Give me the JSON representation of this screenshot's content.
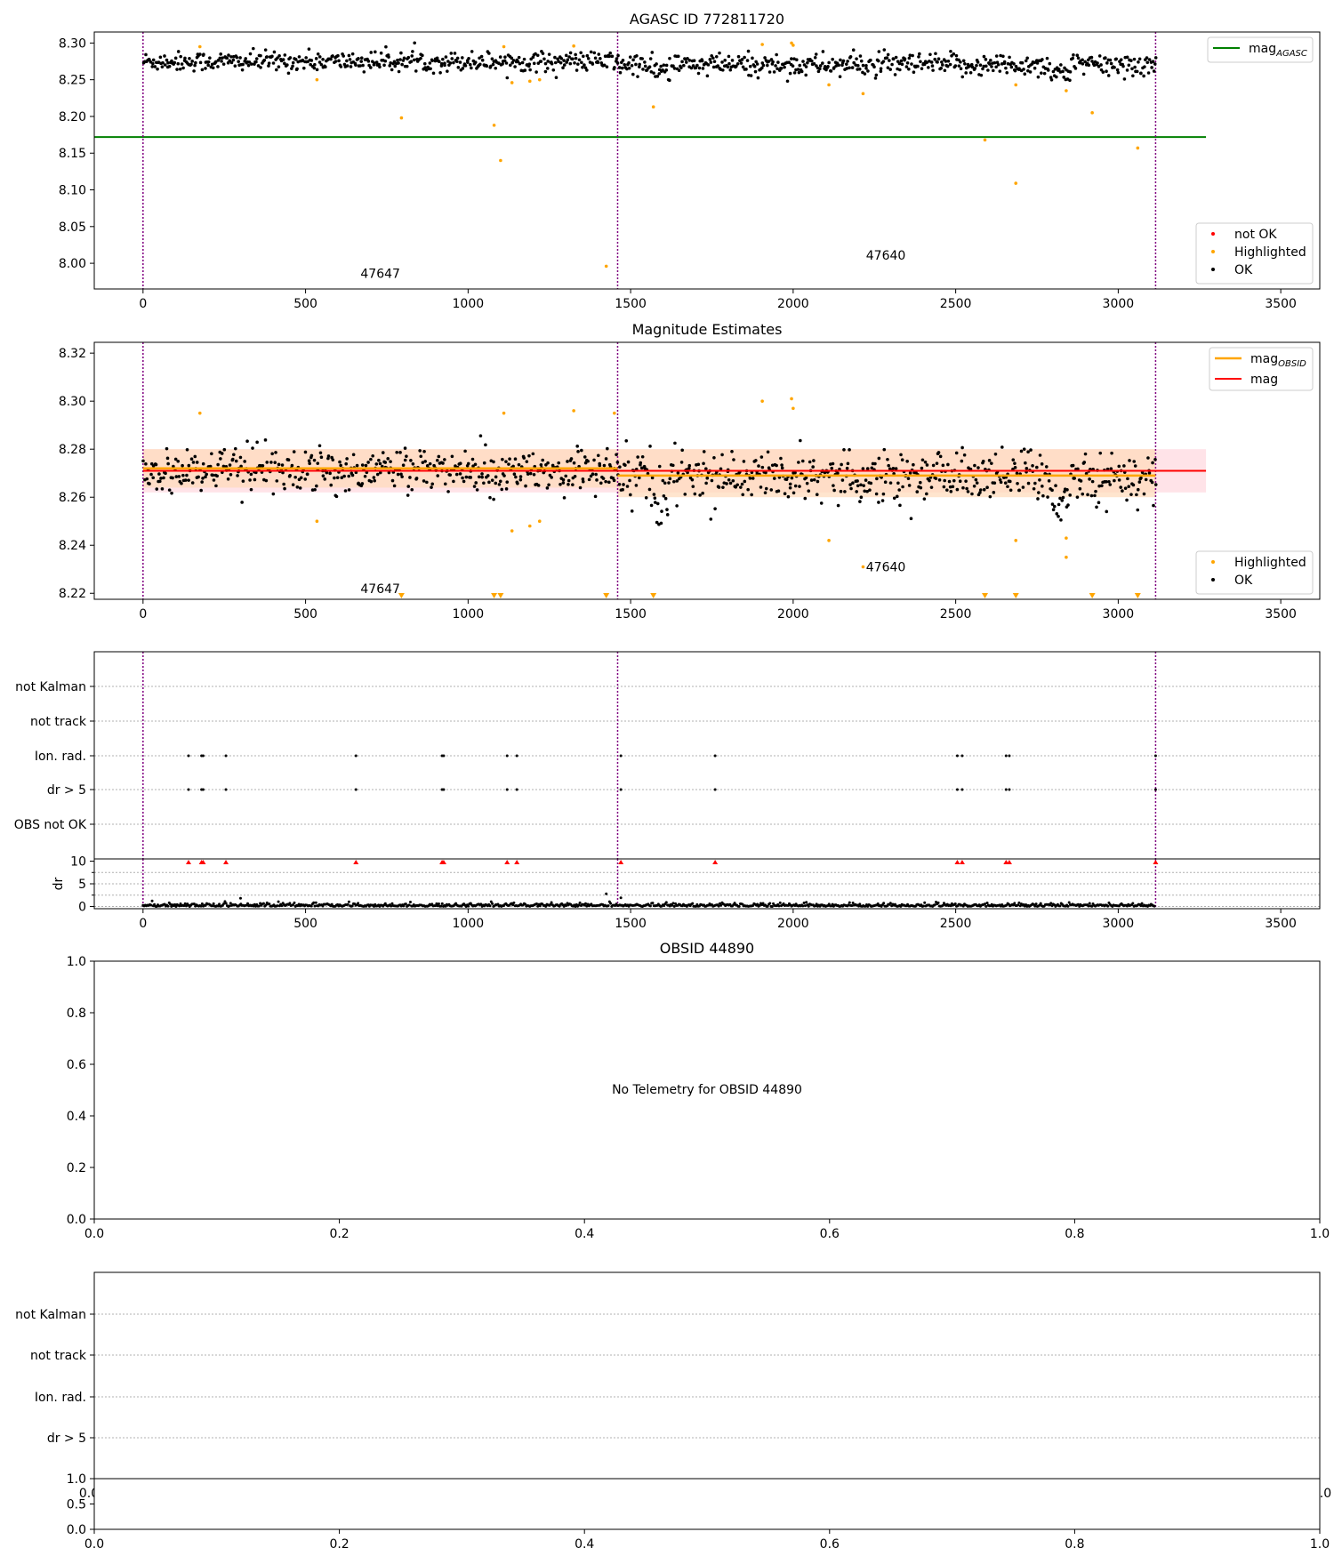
{
  "colors": {
    "ok": "#000000",
    "highlighted": "#ffa500",
    "not_ok": "#ff0000",
    "mag_agasc": "#008000",
    "mag_obsid": "#ffa500",
    "mag": "#ff0000",
    "band_obsid": "#ffdab9",
    "band_mag": "#ffc0cb",
    "obsid_boundary": "#800080",
    "grid": "#b0b0b0"
  },
  "chart_data": [
    {
      "id": "agasc",
      "type": "scatter",
      "title": "AGASC ID 772811720",
      "xlim": [
        -150,
        3620
      ],
      "ylim": [
        7.965,
        8.315
      ],
      "xticks": [
        "0",
        "500",
        "1000",
        "1500",
        "2000",
        "2500",
        "3000",
        "3500"
      ],
      "yticks": [
        "8.00",
        "8.05",
        "8.10",
        "8.15",
        "8.20",
        "8.25",
        "8.30"
      ],
      "legend_upper": {
        "position": "upper-right",
        "entries": [
          "mag_AGASC"
        ]
      },
      "legend_lower": {
        "position": "lower-right",
        "entries": [
          "not OK",
          "Highlighted",
          "OK"
        ]
      },
      "mag_agasc": {
        "value": 8.172,
        "x_range": [
          0,
          3270
        ]
      },
      "obsid_boundaries": [
        0,
        1460,
        3115
      ],
      "annotations": [
        {
          "text": "47647",
          "x": 730,
          "y": 7.98
        },
        {
          "text": "47640",
          "x": 2285,
          "y": 8.005
        }
      ],
      "ok_segments": [
        {
          "x0": 0,
          "x1": 1460,
          "mean": 8.275,
          "spread": 0.012
        },
        {
          "x0": 1460,
          "x1": 3115,
          "mean": 8.27,
          "spread": 0.014
        }
      ],
      "highlighted_points": [
        [
          175,
          8.295
        ],
        [
          535,
          8.25
        ],
        [
          795,
          8.198
        ],
        [
          1080,
          8.188
        ],
        [
          1100,
          8.14
        ],
        [
          1110,
          8.295
        ],
        [
          1135,
          8.246
        ],
        [
          1190,
          8.248
        ],
        [
          1220,
          8.25
        ],
        [
          1325,
          8.296
        ],
        [
          1425,
          7.996
        ],
        [
          1570,
          8.213
        ],
        [
          1905,
          8.298
        ],
        [
          1995,
          8.3
        ],
        [
          2000,
          8.297
        ],
        [
          2110,
          8.243
        ],
        [
          2215,
          8.231
        ],
        [
          2590,
          8.168
        ],
        [
          2685,
          8.109
        ],
        [
          2685,
          8.243
        ],
        [
          2840,
          8.235
        ],
        [
          2920,
          8.205
        ],
        [
          3060,
          8.157
        ]
      ]
    },
    {
      "id": "mag_estimates",
      "type": "scatter",
      "title": "Magnitude Estimates",
      "xlim": [
        -150,
        3620
      ],
      "ylim": [
        8.2175,
        8.3245
      ],
      "xticks": [
        "0",
        "500",
        "1000",
        "1500",
        "2000",
        "2500",
        "3000",
        "3500"
      ],
      "yticks": [
        "8.22",
        "8.24",
        "8.26",
        "8.28",
        "8.30",
        "8.32"
      ],
      "legend_upper": {
        "position": "upper-right",
        "entries": [
          "mag_OBSID",
          "mag"
        ]
      },
      "legend_lower": {
        "position": "lower-right",
        "entries": [
          "Highlighted",
          "OK"
        ]
      },
      "mag": {
        "value": 8.271,
        "band": [
          8.262,
          8.28
        ],
        "x_range": [
          0,
          3270
        ]
      },
      "mag_obsid": [
        {
          "x0": 0,
          "x1": 1460,
          "value": 8.272,
          "band": [
            8.264,
            8.28
          ]
        },
        {
          "x0": 1460,
          "x1": 3115,
          "value": 8.269,
          "band": [
            8.26,
            8.28
          ]
        }
      ],
      "obsid_boundaries": [
        0,
        1460,
        3115
      ],
      "annotations": [
        {
          "text": "47647",
          "x": 730,
          "y": 8.222
        },
        {
          "text": "47640",
          "x": 2285,
          "y": 8.231
        }
      ],
      "ok_segments": [
        {
          "x0": 0,
          "x1": 1460,
          "mean": 8.271,
          "spread": 0.008
        },
        {
          "x0": 1460,
          "x1": 3115,
          "mean": 8.269,
          "spread": 0.01
        }
      ],
      "highlighted_points": [
        [
          175,
          8.295
        ],
        [
          535,
          8.25
        ],
        [
          1110,
          8.295
        ],
        [
          1135,
          8.246
        ],
        [
          1190,
          8.248
        ],
        [
          1220,
          8.25
        ],
        [
          1325,
          8.296
        ],
        [
          1450,
          8.295
        ],
        [
          1905,
          8.3
        ],
        [
          1995,
          8.301
        ],
        [
          2000,
          8.297
        ],
        [
          2110,
          8.242
        ],
        [
          2215,
          8.231
        ],
        [
          2685,
          8.242
        ],
        [
          2840,
          8.235
        ],
        [
          2840,
          8.243
        ]
      ],
      "highlighted_offscale_x": [
        795,
        1080,
        1100,
        1425,
        1570,
        2590,
        2685,
        2920,
        3060
      ]
    },
    {
      "id": "flags_agasc",
      "type": "scatter",
      "xlim": [
        -150,
        3620
      ],
      "categories": [
        "not Kalman",
        "not track",
        "Ion. rad.",
        "dr > 5",
        "OBS not OK"
      ],
      "flag_events": {
        "Ion. rad.": [
          140,
          180,
          185,
          255,
          655,
          920,
          925,
          1120,
          1150,
          1470,
          1760,
          2505,
          2520,
          2655,
          2665,
          3115
        ],
        "dr > 5": [
          140,
          180,
          185,
          255,
          655,
          920,
          925,
          1120,
          1150,
          1470,
          1760,
          2505,
          2520,
          2655,
          2665,
          3115
        ]
      },
      "obsid_boundaries": [
        0,
        1460,
        3115
      ]
    },
    {
      "id": "dr_agasc",
      "type": "scatter",
      "ylabel": "dr",
      "xlim": [
        -150,
        3620
      ],
      "ylim": [
        -0.5,
        10.5
      ],
      "xticks": [
        "0",
        "500",
        "1000",
        "1500",
        "2000",
        "2500",
        "3000",
        "3500"
      ],
      "yticks": [
        "0",
        "5",
        "10"
      ],
      "grid_y": [
        0,
        2.5,
        5,
        7.5,
        10
      ],
      "dr_outliers": [
        [
          1425,
          2.8
        ],
        [
          300,
          1.8
        ],
        [
          1470,
          1.9
        ]
      ],
      "dr_clipped_x": [
        140,
        180,
        185,
        255,
        655,
        920,
        925,
        1120,
        1150,
        1470,
        1760,
        2505,
        2520,
        2655,
        2665,
        3115
      ],
      "obsid_boundaries": [
        0,
        1460,
        3115
      ]
    },
    {
      "id": "obsid",
      "type": "scatter",
      "title": "OBSID 44890",
      "message": "No Telemetry for OBSID 44890",
      "xlim": [
        0,
        1
      ],
      "ylim": [
        0,
        1
      ],
      "xticks": [
        "0.0",
        "0.2",
        "0.4",
        "0.6",
        "0.8",
        "1.0"
      ],
      "yticks": [
        "0.0",
        "0.2",
        "0.4",
        "0.6",
        "0.8",
        "1.0"
      ]
    },
    {
      "id": "flags_obsid",
      "type": "scatter",
      "categories": [
        "not Kalman",
        "not track",
        "Ion. rad.",
        "dr > 5"
      ],
      "overlap_xticks": [
        "0.0",
        "1.0"
      ]
    },
    {
      "id": "dr_obsid",
      "type": "scatter",
      "xlim": [
        0,
        1
      ],
      "ylim": [
        0,
        1
      ],
      "xticks": [
        "0.0",
        "0.2",
        "0.4",
        "0.6",
        "0.8",
        "1.0"
      ],
      "yticks": [
        "0.0",
        "0.5",
        "1.0"
      ]
    }
  ]
}
